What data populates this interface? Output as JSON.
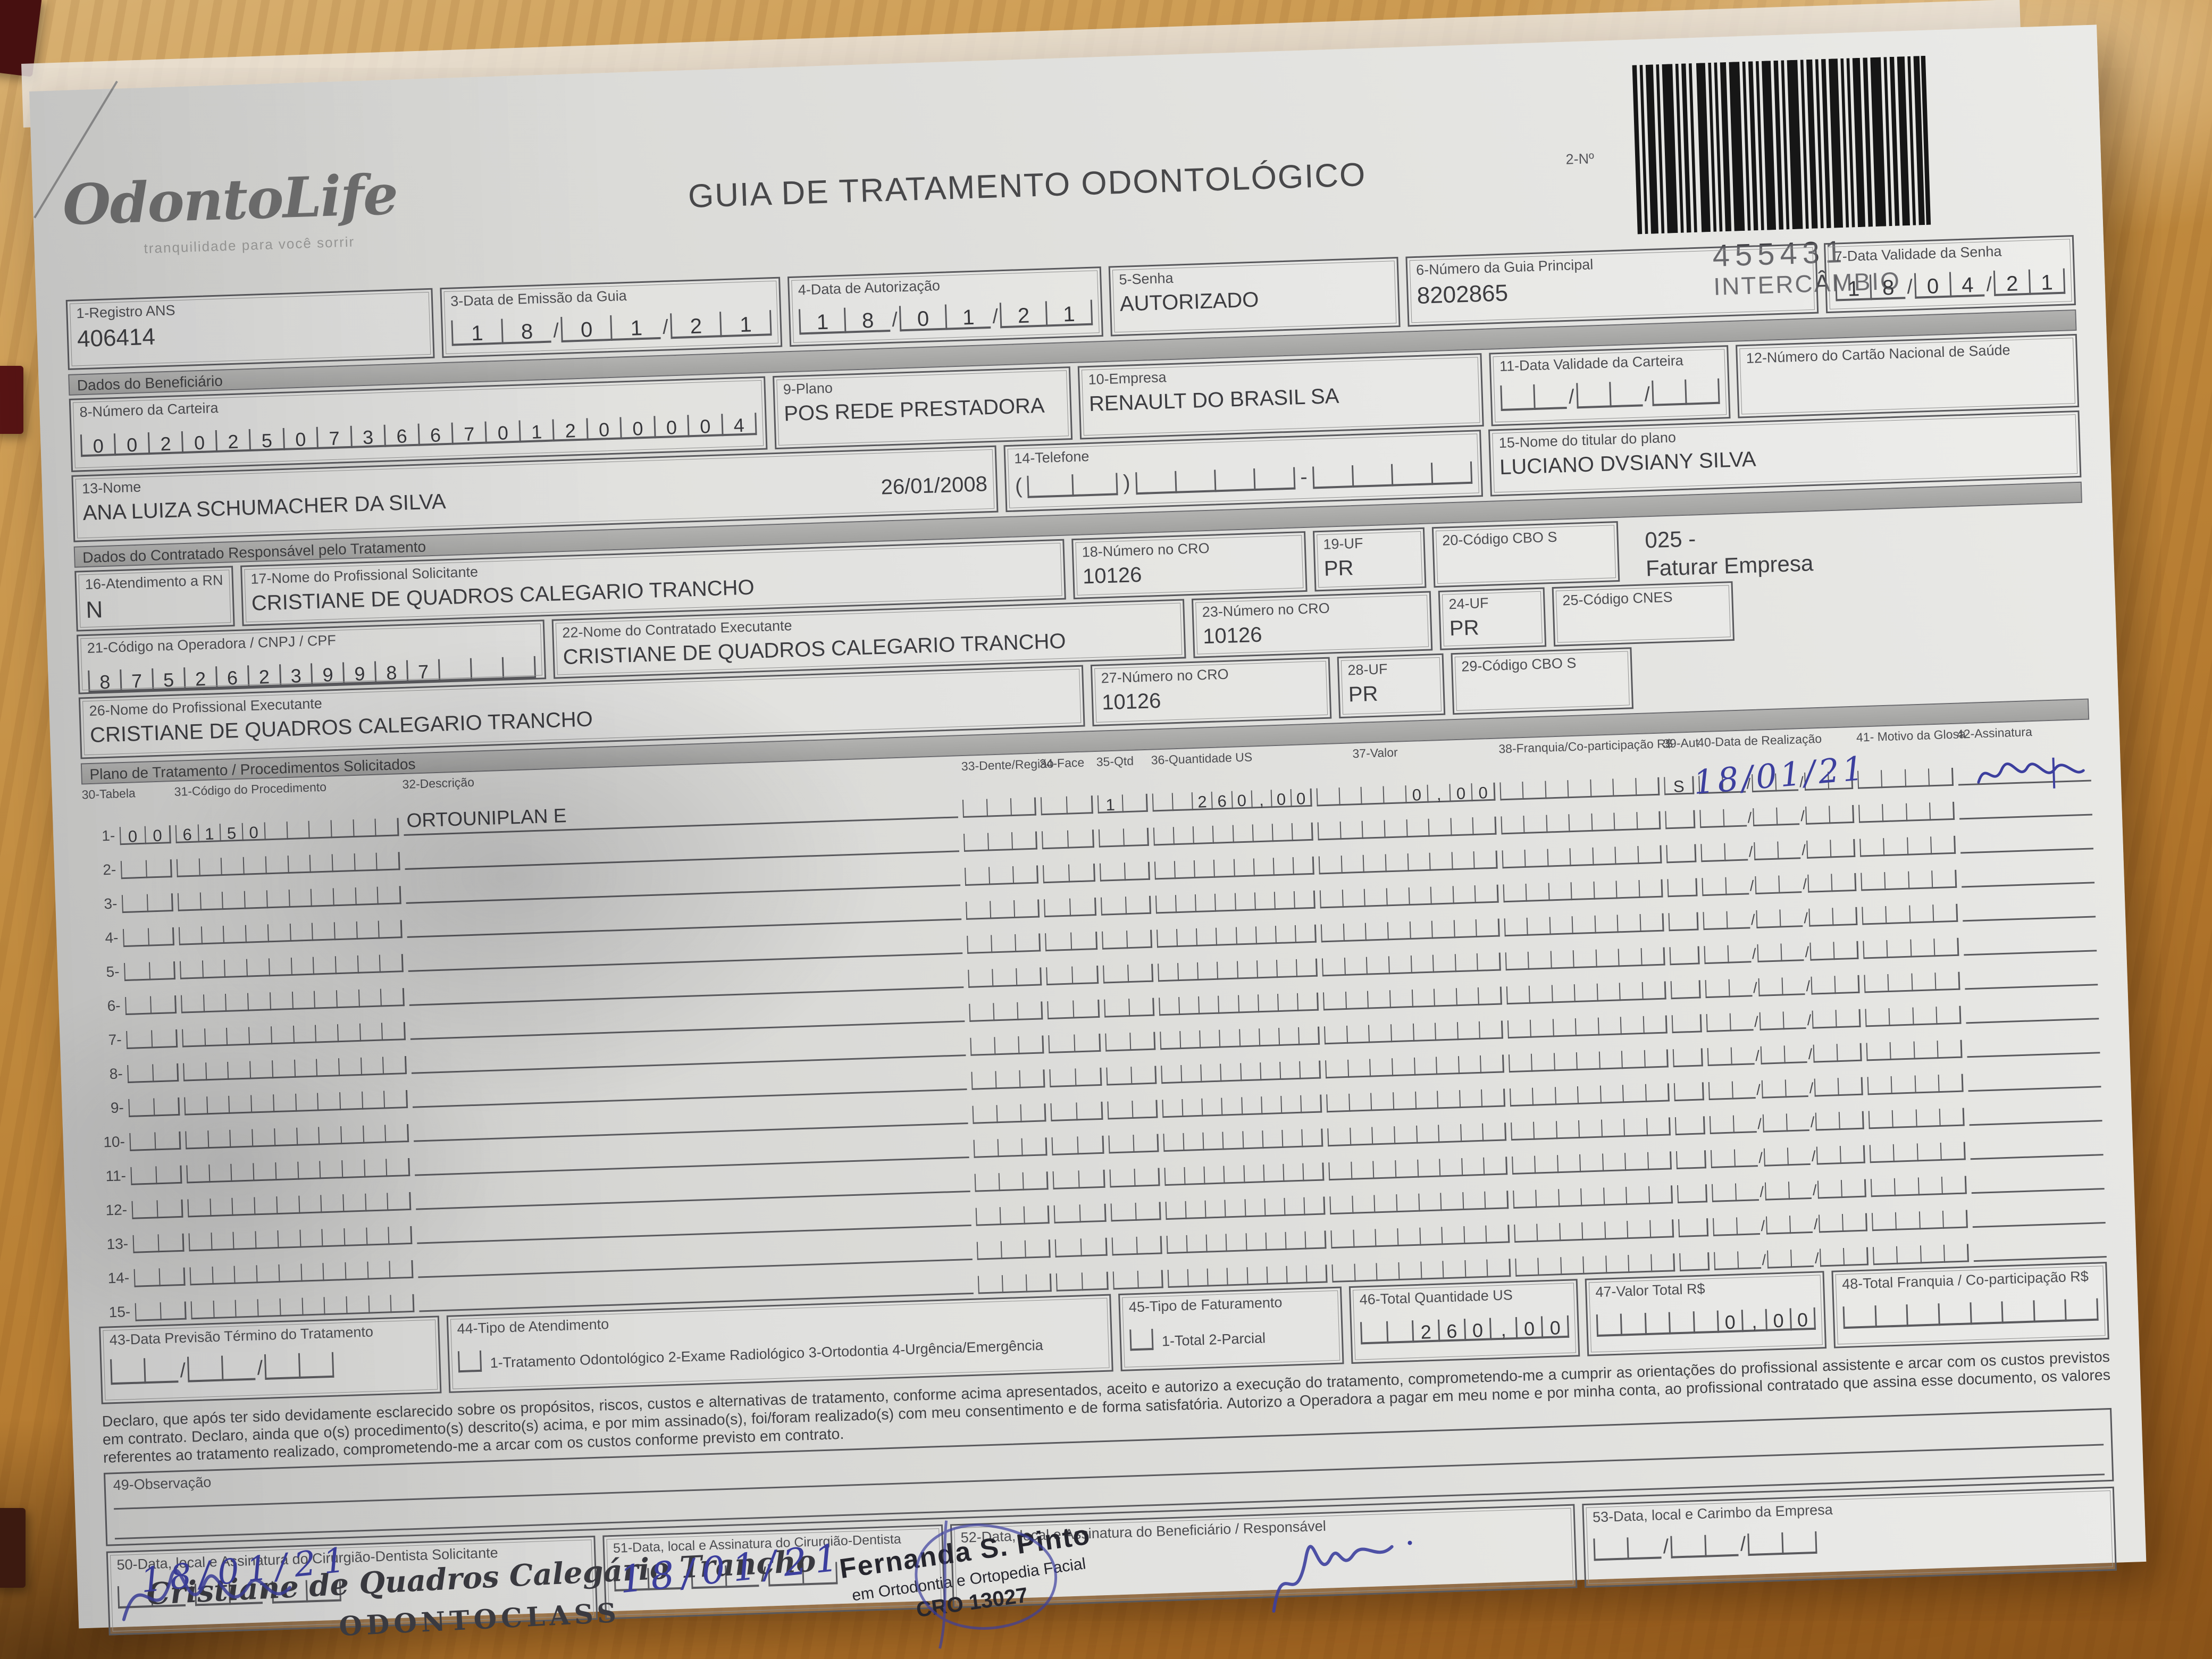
{
  "colors": {
    "ink_blue": "#3c3f9e",
    "stamp_gray": "#3a3a40",
    "paper": "#dfdfdc",
    "desk_wood": "#b2762c"
  },
  "header": {
    "logo": {
      "text": "OdontoLife",
      "tagline": "tranquilidade para você sorrir"
    },
    "title": "GUIA DE TRATAMENTO ODONTOLÓGICO",
    "guide_number_label": "2-Nº",
    "guide_number": "455431",
    "guide_type": "INTERCÂMBIO"
  },
  "top_fields": {
    "registro_ans": {
      "label": "1-Registro ANS",
      "value": "406414"
    },
    "data_emissao": {
      "label": "3-Data de Emissão da Guia",
      "value": "18/01/21"
    },
    "data_autorizacao": {
      "label": "4-Data de Autorização",
      "value": "18/01/21"
    },
    "senha": {
      "label": "5-Senha",
      "value": "AUTORIZADO"
    },
    "numero_guia_principal": {
      "label": "6-Número da Guia Principal",
      "value": "8202865"
    },
    "data_validade_senha": {
      "label": "7-Data Validade da Senha",
      "value": "18/04/21"
    }
  },
  "beneficiario": {
    "section_title": "Dados do Beneficiário",
    "numero_carteira": {
      "label": "8-Número da Carteira",
      "value": "00202507366701200004"
    },
    "plano": {
      "label": "9-Plano",
      "value": "POS REDE PRESTADORA"
    },
    "empresa": {
      "label": "10-Empresa",
      "value": "RENAULT DO BRASIL SA"
    },
    "data_validade_carteira": {
      "label": "11-Data Validade da Carteira",
      "value": ""
    },
    "cartao_nacional_saude": {
      "label": "12-Número do Cartão Nacional de Saúde",
      "value": ""
    },
    "nome": {
      "label": "13-Nome",
      "value": "ANA LUIZA SCHUMACHER DA SILVA",
      "data_nascimento": "26/01/2008"
    },
    "telefone": {
      "label": "14-Telefone",
      "value": "",
      "paren_open": "(",
      "paren_close": ")",
      "dash": "-"
    },
    "titular_plano": {
      "label": "15-Nome do titular do plano",
      "value": "LUCIANO DVSIANY SILVA"
    }
  },
  "contratado": {
    "section_title": "Dados do Contratado Responsável pelo Tratamento",
    "atendimento_rn": {
      "label": "16-Atendimento a RN",
      "value": "N"
    },
    "profissional_solicitante": {
      "label": "17-Nome do Profissional Solicitante",
      "value": "CRISTIANE DE QUADROS CALEGARIO TRANCHO"
    },
    "cro_solicitante": {
      "label": "18-Número no CRO",
      "value": "10126"
    },
    "uf_solicitante": {
      "label": "19-UF",
      "value": "PR"
    },
    "cbo_solicitante": {
      "label": "20-Código CBO S",
      "value": ""
    },
    "nota_faturamento": {
      "line1": "025 -",
      "line2": "Faturar Empresa"
    },
    "codigo_operadora": {
      "label": "21-Código na Operadora / CNPJ / CPF",
      "value": "87526239987"
    },
    "contratado_executante": {
      "label": "22-Nome do Contratado Executante",
      "value": "CRISTIANE DE QUADROS CALEGARIO TRANCHO"
    },
    "cro_executante": {
      "label": "23-Número no CRO",
      "value": "10126"
    },
    "uf_executante": {
      "label": "24-UF",
      "value": "PR"
    },
    "codigo_cnes": {
      "label": "25-Código CNES",
      "value": ""
    },
    "profissional_executante": {
      "label": "26-Nome do Profissional Executante",
      "value": "CRISTIANE DE QUADROS CALEGARIO TRANCHO"
    },
    "cro_prof_executante": {
      "label": "27-Número no CRO",
      "value": "10126"
    },
    "uf_prof_executante": {
      "label": "28-UF",
      "value": "PR"
    },
    "cbo_executante": {
      "label": "29-Código CBO S",
      "value": ""
    }
  },
  "plano_tratamento": {
    "section_title": "Plano de Tratamento / Procedimentos Solicitados",
    "columns": [
      "30-Tabela",
      "31-Código do Procedimento",
      "32-Descrição",
      "33-Dente/Região",
      "34-Face",
      "35-Qtd",
      "36-Quantidade US",
      "37-Valor",
      "38-Franquia/Co-participação R$",
      "39-Aut",
      "40-Data de Realização",
      "41- Motivo da Glosa",
      "42-Assinatura"
    ],
    "rows": [
      {
        "num": "1-",
        "tabela": "00",
        "codigo": "6150",
        "descricao": "ORTOUNIPLAN E",
        "dente_regiao": "",
        "face": "",
        "qtd": "1",
        "quantidade_us": "260,00",
        "valor": "0,00",
        "franquia": "",
        "aut": "S",
        "data_realizacao": "18/01/21",
        "motivo_glosa": "",
        "assinatura": "sim"
      },
      {
        "num": "2-",
        "tabela": "",
        "codigo": "",
        "descricao": "",
        "dente_regiao": "",
        "face": "",
        "qtd": "",
        "quantidade_us": "",
        "valor": "",
        "franquia": "",
        "aut": "",
        "data_realizacao": "",
        "motivo_glosa": "",
        "assinatura": ""
      },
      {
        "num": "3-",
        "tabela": "",
        "codigo": "",
        "descricao": "",
        "dente_regiao": "",
        "face": "",
        "qtd": "",
        "quantidade_us": "",
        "valor": "",
        "franquia": "",
        "aut": "",
        "data_realizacao": "",
        "motivo_glosa": "",
        "assinatura": ""
      },
      {
        "num": "4-",
        "tabela": "",
        "codigo": "",
        "descricao": "",
        "dente_regiao": "",
        "face": "",
        "qtd": "",
        "quantidade_us": "",
        "valor": "",
        "franquia": "",
        "aut": "",
        "data_realizacao": "",
        "motivo_glosa": "",
        "assinatura": ""
      },
      {
        "num": "5-",
        "tabela": "",
        "codigo": "",
        "descricao": "",
        "dente_regiao": "",
        "face": "",
        "qtd": "",
        "quantidade_us": "",
        "valor": "",
        "franquia": "",
        "aut": "",
        "data_realizacao": "",
        "motivo_glosa": "",
        "assinatura": ""
      },
      {
        "num": "6-",
        "tabela": "",
        "codigo": "",
        "descricao": "",
        "dente_regiao": "",
        "face": "",
        "qtd": "",
        "quantidade_us": "",
        "valor": "",
        "franquia": "",
        "aut": "",
        "data_realizacao": "",
        "motivo_glosa": "",
        "assinatura": ""
      },
      {
        "num": "7-",
        "tabela": "",
        "codigo": "",
        "descricao": "",
        "dente_regiao": "",
        "face": "",
        "qtd": "",
        "quantidade_us": "",
        "valor": "",
        "franquia": "",
        "aut": "",
        "data_realizacao": "",
        "motivo_glosa": "",
        "assinatura": ""
      },
      {
        "num": "8-",
        "tabela": "",
        "codigo": "",
        "descricao": "",
        "dente_regiao": "",
        "face": "",
        "qtd": "",
        "quantidade_us": "",
        "valor": "",
        "franquia": "",
        "aut": "",
        "data_realizacao": "",
        "motivo_glosa": "",
        "assinatura": ""
      },
      {
        "num": "9-",
        "tabela": "",
        "codigo": "",
        "descricao": "",
        "dente_regiao": "",
        "face": "",
        "qtd": "",
        "quantidade_us": "",
        "valor": "",
        "franquia": "",
        "aut": "",
        "data_realizacao": "",
        "motivo_glosa": "",
        "assinatura": ""
      },
      {
        "num": "10-",
        "tabela": "",
        "codigo": "",
        "descricao": "",
        "dente_regiao": "",
        "face": "",
        "qtd": "",
        "quantidade_us": "",
        "valor": "",
        "franquia": "",
        "aut": "",
        "data_realizacao": "",
        "motivo_glosa": "",
        "assinatura": ""
      },
      {
        "num": "11-",
        "tabela": "",
        "codigo": "",
        "descricao": "",
        "dente_regiao": "",
        "face": "",
        "qtd": "",
        "quantidade_us": "",
        "valor": "",
        "franquia": "",
        "aut": "",
        "data_realizacao": "",
        "motivo_glosa": "",
        "assinatura": ""
      },
      {
        "num": "12-",
        "tabela": "",
        "codigo": "",
        "descricao": "",
        "dente_regiao": "",
        "face": "",
        "qtd": "",
        "quantidade_us": "",
        "valor": "",
        "franquia": "",
        "aut": "",
        "data_realizacao": "",
        "motivo_glosa": "",
        "assinatura": ""
      },
      {
        "num": "13-",
        "tabela": "",
        "codigo": "",
        "descricao": "",
        "dente_regiao": "",
        "face": "",
        "qtd": "",
        "quantidade_us": "",
        "valor": "",
        "franquia": "",
        "aut": "",
        "data_realizacao": "",
        "motivo_glosa": "",
        "assinatura": ""
      },
      {
        "num": "14-",
        "tabela": "",
        "codigo": "",
        "descricao": "",
        "dente_regiao": "",
        "face": "",
        "qtd": "",
        "quantidade_us": "",
        "valor": "",
        "franquia": "",
        "aut": "",
        "data_realizacao": "",
        "motivo_glosa": "",
        "assinatura": ""
      },
      {
        "num": "15-",
        "tabela": "",
        "codigo": "",
        "descricao": "",
        "dente_regiao": "",
        "face": "",
        "qtd": "",
        "quantidade_us": "",
        "valor": "",
        "franquia": "",
        "aut": "",
        "data_realizacao": "",
        "motivo_glosa": "",
        "assinatura": ""
      }
    ]
  },
  "totais": {
    "data_previsao_termino": {
      "label": "43-Data Previsão Término do Tratamento",
      "value": ""
    },
    "tipo_atendimento": {
      "label": "44-Tipo de Atendimento",
      "options": "1-Tratamento Odontológico  2-Exame Radiológico  3-Ortodontia  4-Urgência/Emergência",
      "value": ""
    },
    "tipo_faturamento": {
      "label": "45-Tipo de Faturamento",
      "options": "1-Total  2-Parcial",
      "value": ""
    },
    "total_quantidade_us": {
      "label": "46-Total Quantidade US",
      "value": "260,00"
    },
    "valor_total": {
      "label": "47-Valor Total R$",
      "value": "0,00"
    },
    "total_franquia": {
      "label": "48-Total Franquia / Co-participação R$",
      "value": ""
    }
  },
  "declaracao": "Declaro, que após ter sido devidamente esclarecido sobre os propósitos, riscos, custos e alternativas de tratamento, conforme acima apresentados, aceito e autorizo a execução do tratamento, comprometendo-me a cumprir as orientações do profissional assistente e arcar com os custos previstos em contrato. Declaro, ainda que o(s) procedimento(s) descrito(s) acima, e por mim assinado(s), foi/foram realizado(s) com meu consentimento e de forma satisfatória. Autorizo a Operadora a pagar em meu nome e por minha conta, ao profissional contratado que assina esse documento, os valores referentes ao tratamento realizado, comprometendo-me a arcar com os custos conforme previsto em contrato.",
  "observacao": {
    "label": "49-Observação",
    "value": ""
  },
  "assinaturas": {
    "solicitante": {
      "label": "50-Data, local e Assinatura do Cirurgião-Dentista Solicitante",
      "stamp_line1": "Cristiane de Quadros Calegário Trancho",
      "stamp_line2": "ODONTOCLASS",
      "handwritten_date": "18/01/21"
    },
    "dentista": {
      "label": "51-Data, local e Assinatura do Cirurgião-Dentista",
      "handwritten_date": "18/01/21"
    },
    "beneficiario": {
      "label": "52-Data, local e Assinatura do Beneficiário / Responsável",
      "stamp_line1": "Fernanda S. Pinto",
      "stamp_line2": "em Ortodontia e Ortopedia Facial",
      "stamp_line3": "CRO 13027"
    },
    "empresa": {
      "label": "53-Data, local e Carimbo da Empresa",
      "value": ""
    }
  }
}
